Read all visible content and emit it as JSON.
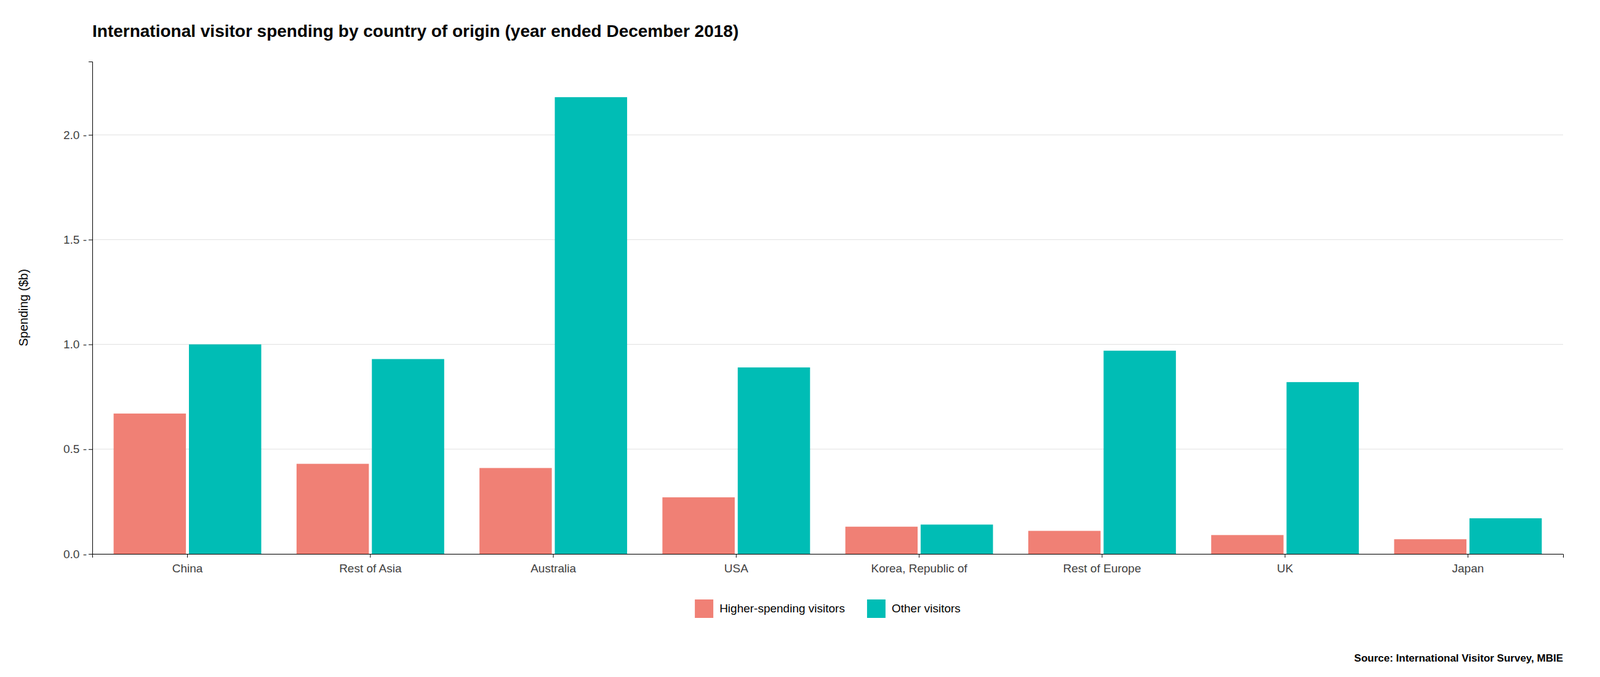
{
  "chart_data": {
    "type": "bar",
    "title": "International visitor spending by country of origin (year ended December 2018)",
    "ylabel": "Spending ($b)",
    "categories": [
      "China",
      "Rest of Asia",
      "Australia",
      "USA",
      "Korea, Republic of",
      "Rest of Europe",
      "UK",
      "Japan"
    ],
    "series": [
      {
        "name": "Higher-spending visitors",
        "color": "#F08075",
        "values": [
          0.67,
          0.43,
          0.41,
          0.27,
          0.13,
          0.11,
          0.09,
          0.07
        ]
      },
      {
        "name": "Other visitors",
        "color": "#00BDB5",
        "values": [
          1.0,
          0.93,
          2.18,
          0.89,
          0.14,
          0.97,
          0.82,
          0.17
        ]
      }
    ],
    "ylim": [
      0,
      2.35
    ],
    "yticks": [
      {
        "value": 0.0,
        "label": "0.0 -"
      },
      {
        "value": 0.5,
        "label": "0.5 -"
      },
      {
        "value": 1.0,
        "label": "1.0 -"
      },
      {
        "value": 1.5,
        "label": "1.5 -"
      },
      {
        "value": 2.0,
        "label": "2.0 -"
      }
    ],
    "grid": true,
    "legend": "bottom",
    "annotations": [
      "Source: International Visitor Survey, MBIE"
    ]
  }
}
